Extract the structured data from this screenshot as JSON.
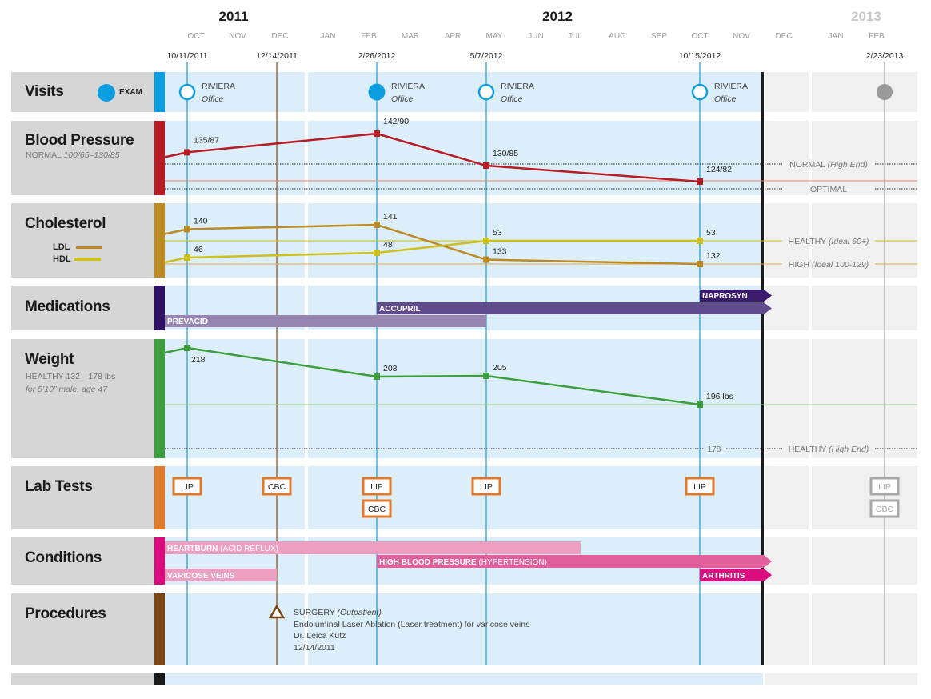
{
  "colors": {
    "visits": "#0b9ee0",
    "blood_pressure": "#b71c24",
    "cholesterol": "#bb8a22",
    "ldl": "#bb8a22",
    "hdl": "#cdbf1c",
    "medications": "#2e1065",
    "weight": "#3d9e3d",
    "lab_tests": "#e07a2a",
    "conditions": "#dc0a7f",
    "procedures": "#7a4414",
    "past_area": "#dceefa",
    "future_area": "#f0f0f0",
    "future": "#9a9a9a"
  },
  "timeline": {
    "years": [
      "2011",
      "2012",
      "2013"
    ],
    "months": [
      "OCT",
      "NOV",
      "DEC",
      "JAN",
      "FEB",
      "MAR",
      "APR",
      "MAY",
      "JUN",
      "JUL",
      "AUG",
      "SEP",
      "OCT",
      "NOV",
      "DEC",
      "JAN",
      "FEB"
    ],
    "event_dates": [
      "10/11/2011",
      "12/14/2011",
      "2/26/2012",
      "5/7/2012",
      "10/15/2012",
      "2/23/2013"
    ]
  },
  "visits": {
    "title": "Visits",
    "legend_label": "EXAM",
    "items": [
      {
        "date": "10/11/2011",
        "place": "RIVIERA",
        "type": "Office",
        "exam": false
      },
      {
        "date": "2/26/2012",
        "place": "RIVIERA",
        "type": "Office",
        "exam": true
      },
      {
        "date": "5/7/2012",
        "place": "RIVIERA",
        "type": "Office",
        "exam": false
      },
      {
        "date": "10/15/2012",
        "place": "RIVIERA",
        "type": "Office",
        "exam": false
      },
      {
        "date": "2/23/2013",
        "place": "",
        "type": "",
        "exam": true,
        "future": true
      }
    ]
  },
  "blood_pressure": {
    "title": "Blood Pressure",
    "normal_label": "NORMAL",
    "normal_range": "100/65–130/85",
    "readings": [
      {
        "date": "10/11/2011",
        "systolic": 135,
        "label": "135/87"
      },
      {
        "date": "2/26/2012",
        "systolic": 142,
        "label": "142/90"
      },
      {
        "date": "5/7/2012",
        "systolic": 130,
        "label": "130/85"
      },
      {
        "date": "10/15/2012",
        "systolic": 124,
        "label": "124/82"
      }
    ],
    "reference_lines": [
      {
        "value": 130,
        "label": "NORMAL",
        "note": "(High End)"
      },
      {
        "value": 120,
        "label": "OPTIMAL",
        "note": ""
      }
    ]
  },
  "cholesterol": {
    "title": "Cholesterol",
    "ldl_label": "LDL",
    "hdl_label": "HDL",
    "ldl": [
      {
        "date": "10/11/2011",
        "value": 140
      },
      {
        "date": "2/26/2012",
        "value": 141
      },
      {
        "date": "5/7/2012",
        "value": 133
      },
      {
        "date": "10/15/2012",
        "value": 132
      }
    ],
    "hdl": [
      {
        "date": "10/11/2011",
        "value": 46
      },
      {
        "date": "2/26/2012",
        "value": 48
      },
      {
        "date": "5/7/2012",
        "value": 53
      },
      {
        "date": "10/15/2012",
        "value": 53
      }
    ],
    "hdl_status": {
      "label": "HEALTHY",
      "note": "(Ideal 60+)"
    },
    "ldl_status": {
      "label": "HIGH",
      "note": "(Ideal 100-129)"
    }
  },
  "medications": {
    "title": "Medications",
    "items": [
      {
        "name": "NAPROSYN",
        "start": "10/15/2012",
        "ongoing": true,
        "color": "#3b1a6e"
      },
      {
        "name": "ACCUPRIL",
        "start": "2/26/2012",
        "ongoing": true,
        "color": "#624b8c"
      },
      {
        "name": "PREVACID",
        "start": "before 10/11/2011",
        "end": "5/7/2012",
        "ongoing": false,
        "color": "#9885b2"
      }
    ]
  },
  "weight": {
    "title": "Weight",
    "healthy_label": "HEALTHY",
    "healthy_range": "132—178 lbs",
    "profile": "for 5’10” male, age 47",
    "readings": [
      {
        "date": "10/11/2011",
        "value": 218,
        "label": "218"
      },
      {
        "date": "2/26/2012",
        "value": 203,
        "label": "203"
      },
      {
        "date": "5/7/2012",
        "value": 205,
        "label": "205"
      },
      {
        "date": "10/15/2012",
        "value": 196,
        "label": "196 lbs"
      }
    ],
    "reference": {
      "value": 178,
      "value_label": "178",
      "label": "HEALTHY",
      "note": "(High End)"
    }
  },
  "lab_tests": {
    "title": "Lab Tests",
    "items": [
      {
        "date": "10/11/2011",
        "tests": [
          "LIP"
        ]
      },
      {
        "date": "12/14/2011",
        "tests": [
          "CBC"
        ]
      },
      {
        "date": "2/26/2012",
        "tests": [
          "LIP",
          "CBC"
        ]
      },
      {
        "date": "5/7/2012",
        "tests": [
          "LIP"
        ]
      },
      {
        "date": "10/15/2012",
        "tests": [
          "LIP"
        ]
      },
      {
        "date": "2/23/2013",
        "tests": [
          "LIP",
          "CBC"
        ],
        "future": true
      }
    ]
  },
  "conditions": {
    "title": "Conditions",
    "items": [
      {
        "name": "HEARTBURN",
        "detail": "(ACID REFLUX)",
        "ongoing": false,
        "color": "#ec9fc0"
      },
      {
        "name": "HIGH BLOOD PRESSURE",
        "detail": "(HYPERTENSION)",
        "start": "2/26/2012",
        "ongoing": true,
        "color": "#e0609b"
      },
      {
        "name": "VARICOSE VEINS",
        "detail": "",
        "end": "12/14/2011",
        "ongoing": false,
        "color": "#ec9fc0"
      },
      {
        "name": "ARTHRITIS",
        "detail": "",
        "start": "10/15/2012",
        "ongoing": true,
        "color": "#db0e80"
      }
    ]
  },
  "procedures": {
    "title": "Procedures",
    "items": [
      {
        "date": "12/14/2011",
        "type": "SURGERY",
        "setting": "(Outpatient)",
        "description": "Endoluminal Laser Ablation (Laser treatment) for varicose veins",
        "doctor": "Dr. Leica Kutz",
        "date_label": "12/14/2011"
      }
    ]
  }
}
